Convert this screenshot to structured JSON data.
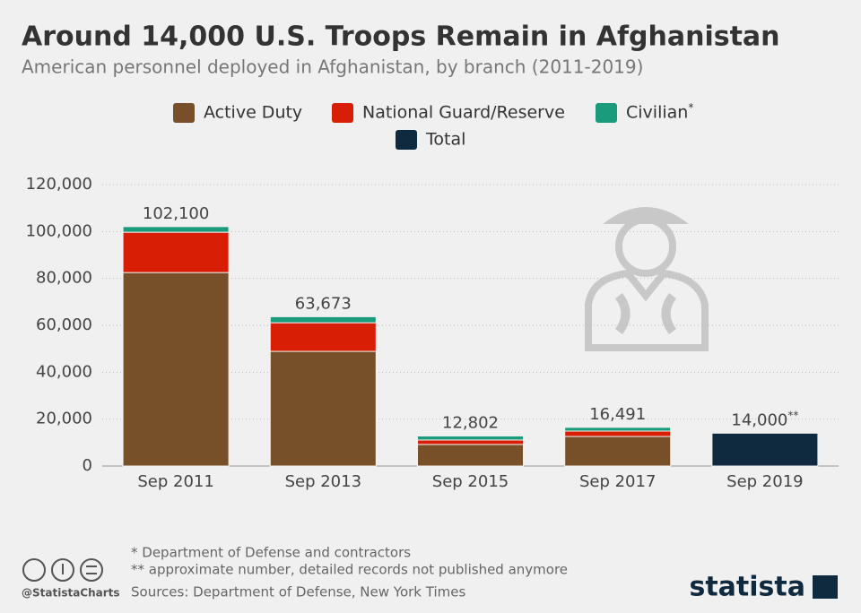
{
  "chart_data": {
    "type": "stacked_bar",
    "title": "Around 14,000 U.S. Troops Remain in Afghanistan",
    "subtitle": "American personnel deployed in Afghanistan, by branch (2011-2019)",
    "categories": [
      "Sep 2011",
      "Sep 2013",
      "Sep 2015",
      "Sep 2017",
      "Sep 2019"
    ],
    "series": [
      {
        "name": "Active Duty",
        "color": "#774f28",
        "values": [
          82500,
          48900,
          9200,
          12600,
          null
        ]
      },
      {
        "name": "National Guard/Reserve",
        "color": "#d81e05",
        "values": [
          17200,
          12200,
          1900,
          2300,
          null
        ]
      },
      {
        "name": "Civilian",
        "name_suffix": "*",
        "color": "#1a9b7c",
        "values": [
          2400,
          2573,
          1702,
          1591,
          null
        ]
      },
      {
        "name": "Total",
        "color": "#0f2a3f",
        "values": [
          null,
          null,
          null,
          null,
          14000
        ]
      }
    ],
    "totals": {
      "values": [
        102100,
        63673,
        12802,
        16491,
        14000
      ],
      "value_labels": [
        "102,100",
        "63,673",
        "12,802",
        "16,491",
        "14,000"
      ],
      "label_suffixes": [
        null,
        null,
        null,
        null,
        "**"
      ]
    },
    "ylim": [
      0,
      120000
    ],
    "yticks": [
      0,
      {
        "value": 20000,
        "label": "20,000"
      },
      {
        "value": 40000,
        "label": "40,000"
      },
      {
        "value": 60000,
        "label": "60,000"
      },
      {
        "value": 80000,
        "label": "80,000"
      },
      {
        "value": 100000,
        "label": "100,000"
      },
      {
        "value": 120000,
        "label": "120,000"
      }
    ],
    "grid": true,
    "footnotes": [
      "*   Department of Defense and contractors",
      "** approximate number, detailed records not published anymore"
    ],
    "source": "Sources: Department of Defense, New York Times",
    "handle": "@StatistaCharts",
    "brand": "statista"
  }
}
